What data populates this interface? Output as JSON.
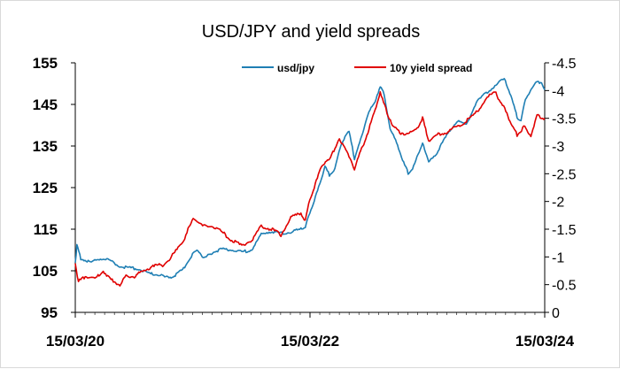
{
  "chart_data": {
    "type": "line",
    "title": "USD/JPY and yield spreads",
    "x_tick_labels": [
      "15/03/20",
      "15/03/22",
      "15/03/24"
    ],
    "x_range": [
      "2020-03-15",
      "2024-03-15"
    ],
    "y_left": {
      "range": [
        95,
        155
      ],
      "ticks": [
        "95",
        "105",
        "115",
        "125",
        "135",
        "145",
        "155"
      ]
    },
    "y_right": {
      "range": [
        0,
        -4.5
      ],
      "inverted": true,
      "ticks": [
        "0",
        "-0.5",
        "-1",
        "-1.5",
        "-2",
        "-2.5",
        "-3",
        "-3.5",
        "-4",
        "-4.5"
      ]
    },
    "legend_position": "top",
    "grid": false,
    "series": [
      {
        "name": "usd/jpy",
        "axis": "left",
        "color": "#1f7fb4",
        "points": [
          [
            "2020-03-15",
            107.0
          ],
          [
            "2020-03-20",
            111.0
          ],
          [
            "2020-04-01",
            108.0
          ],
          [
            "2020-05-01",
            107.0
          ],
          [
            "2020-06-01",
            108.0
          ],
          [
            "2020-07-01",
            107.5
          ],
          [
            "2020-08-01",
            106.0
          ],
          [
            "2020-09-01",
            105.8
          ],
          [
            "2020-10-01",
            105.3
          ],
          [
            "2020-11-01",
            104.3
          ],
          [
            "2020-12-01",
            104.0
          ],
          [
            "2021-01-01",
            103.2
          ],
          [
            "2021-01-20",
            104.0
          ],
          [
            "2021-02-15",
            105.5
          ],
          [
            "2021-03-15",
            109.0
          ],
          [
            "2021-04-01",
            110.0
          ],
          [
            "2021-04-20",
            108.0
          ],
          [
            "2021-05-15",
            109.3
          ],
          [
            "2021-06-15",
            110.2
          ],
          [
            "2021-07-15",
            110.0
          ],
          [
            "2021-08-15",
            109.5
          ],
          [
            "2021-09-15",
            110.0
          ],
          [
            "2021-10-15",
            113.8
          ],
          [
            "2021-11-15",
            114.5
          ],
          [
            "2021-12-15",
            114.0
          ],
          [
            "2022-01-15",
            114.3
          ],
          [
            "2022-02-15",
            115.0
          ],
          [
            "2022-03-01",
            115.5
          ],
          [
            "2022-03-15",
            119.0
          ],
          [
            "2022-04-01",
            122.5
          ],
          [
            "2022-04-15",
            126.0
          ],
          [
            "2022-05-01",
            130.0
          ],
          [
            "2022-05-15",
            128.0
          ],
          [
            "2022-06-01",
            129.5
          ],
          [
            "2022-06-20",
            135.5
          ],
          [
            "2022-07-15",
            138.5
          ],
          [
            "2022-08-01",
            132.0
          ],
          [
            "2022-08-20",
            136.5
          ],
          [
            "2022-09-15",
            143.5
          ],
          [
            "2022-10-01",
            145.0
          ],
          [
            "2022-10-20",
            149.5
          ],
          [
            "2022-11-01",
            147.5
          ],
          [
            "2022-11-20",
            139.0
          ],
          [
            "2022-12-10",
            136.0
          ],
          [
            "2023-01-01",
            131.0
          ],
          [
            "2023-01-15",
            128.5
          ],
          [
            "2023-02-01",
            130.0
          ],
          [
            "2023-03-01",
            136.0
          ],
          [
            "2023-03-20",
            131.0
          ],
          [
            "2023-04-15",
            133.5
          ],
          [
            "2023-05-15",
            137.5
          ],
          [
            "2023-06-15",
            141.0
          ],
          [
            "2023-07-15",
            140.0
          ],
          [
            "2023-08-15",
            145.5
          ],
          [
            "2023-09-15",
            147.8
          ],
          [
            "2023-10-15",
            149.5
          ],
          [
            "2023-11-10",
            151.5
          ],
          [
            "2023-12-01",
            147.0
          ],
          [
            "2023-12-20",
            142.0
          ],
          [
            "2024-01-01",
            141.0
          ],
          [
            "2024-01-15",
            146.5
          ],
          [
            "2024-02-15",
            150.0
          ],
          [
            "2024-03-05",
            150.5
          ],
          [
            "2024-03-15",
            148.5
          ]
        ]
      },
      {
        "name": "10y yield spread",
        "axis": "right",
        "color": "#e00000",
        "points": [
          [
            "2020-03-15",
            -0.9
          ],
          [
            "2020-03-25",
            -0.55
          ],
          [
            "2020-04-15",
            -0.65
          ],
          [
            "2020-05-15",
            -0.6
          ],
          [
            "2020-06-10",
            -0.75
          ],
          [
            "2020-07-01",
            -0.6
          ],
          [
            "2020-08-01",
            -0.5
          ],
          [
            "2020-08-20",
            -0.65
          ],
          [
            "2020-09-15",
            -0.65
          ],
          [
            "2020-10-15",
            -0.75
          ],
          [
            "2020-11-15",
            -0.85
          ],
          [
            "2020-12-15",
            -0.85
          ],
          [
            "2021-01-15",
            -1.05
          ],
          [
            "2021-02-15",
            -1.3
          ],
          [
            "2021-03-01",
            -1.5
          ],
          [
            "2021-03-20",
            -1.7
          ],
          [
            "2021-04-15",
            -1.55
          ],
          [
            "2021-05-15",
            -1.55
          ],
          [
            "2021-06-15",
            -1.45
          ],
          [
            "2021-07-15",
            -1.3
          ],
          [
            "2021-08-15",
            -1.2
          ],
          [
            "2021-09-15",
            -1.3
          ],
          [
            "2021-10-15",
            -1.55
          ],
          [
            "2021-11-15",
            -1.5
          ],
          [
            "2021-12-15",
            -1.4
          ],
          [
            "2022-01-15",
            -1.7
          ],
          [
            "2022-02-15",
            -1.8
          ],
          [
            "2022-03-01",
            -1.65
          ],
          [
            "2022-03-15",
            -2.05
          ],
          [
            "2022-04-01",
            -2.3
          ],
          [
            "2022-04-20",
            -2.65
          ],
          [
            "2022-05-15",
            -2.75
          ],
          [
            "2022-06-15",
            -3.15
          ],
          [
            "2022-07-15",
            -2.8
          ],
          [
            "2022-08-01",
            -2.6
          ],
          [
            "2022-08-20",
            -2.9
          ],
          [
            "2022-09-15",
            -3.3
          ],
          [
            "2022-10-01",
            -3.6
          ],
          [
            "2022-10-20",
            -3.95
          ],
          [
            "2022-11-10",
            -3.6
          ],
          [
            "2022-12-01",
            -3.35
          ],
          [
            "2022-12-20",
            -3.25
          ],
          [
            "2023-01-15",
            -3.2
          ],
          [
            "2023-02-15",
            -3.35
          ],
          [
            "2023-03-01",
            -3.5
          ],
          [
            "2023-03-20",
            -3.1
          ],
          [
            "2023-04-15",
            -3.2
          ],
          [
            "2023-05-15",
            -3.25
          ],
          [
            "2023-06-15",
            -3.35
          ],
          [
            "2023-07-15",
            -3.45
          ],
          [
            "2023-08-15",
            -3.6
          ],
          [
            "2023-09-15",
            -3.85
          ],
          [
            "2023-10-15",
            -4.0
          ],
          [
            "2023-10-25",
            -3.8
          ],
          [
            "2023-11-15",
            -3.65
          ],
          [
            "2023-12-01",
            -3.4
          ],
          [
            "2023-12-20",
            -3.2
          ],
          [
            "2024-01-10",
            -3.35
          ],
          [
            "2024-02-01",
            -3.2
          ],
          [
            "2024-02-20",
            -3.55
          ],
          [
            "2024-03-05",
            -3.5
          ],
          [
            "2024-03-15",
            -3.5
          ]
        ]
      }
    ]
  }
}
